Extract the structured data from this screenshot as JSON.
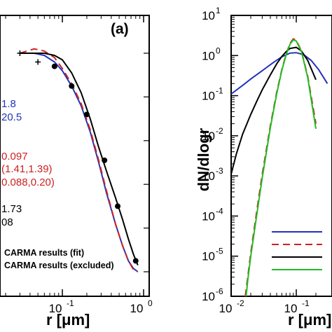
{
  "chart_data": [
    {
      "type": "line",
      "panel_label": "(a)",
      "xlabel": "r  [μm]",
      "xscale": "log",
      "x_ticks": [
        {
          "value": 0.1,
          "label": "10",
          "exp": "-1"
        },
        {
          "value": 1,
          "label": "10",
          "exp": "0"
        }
      ],
      "xlim": [
        0.01,
        1.0
      ],
      "ylim": [
        0,
        1.1
      ],
      "annotations": [
        {
          "text": "1.8",
          "color": "#2233bb"
        },
        {
          "text": "20.5",
          "color": "#2233bb"
        },
        {
          "text": "0.097",
          "color": "#cc2222"
        },
        {
          "text": "(1.41,1.39)",
          "color": "#cc2222"
        },
        {
          "text": "0.088,0.20)",
          "color": "#cc2222"
        },
        {
          "text": "1.73",
          "color": "#000000"
        },
        {
          "text": "08",
          "color": "#000000"
        }
      ],
      "legend": [
        {
          "marker": "filled-circle",
          "text": "CARMA results (fit)"
        },
        {
          "marker": "plus",
          "text": "CARMA results (excluded)"
        }
      ],
      "series": [
        {
          "style": "solid",
          "color": "#2233bb",
          "x": [
            0.03,
            0.045,
            0.06,
            0.08,
            0.1,
            0.13,
            0.17,
            0.22,
            0.28,
            0.35,
            0.45,
            0.55,
            0.65,
            0.75,
            0.85
          ],
          "y": [
            1.0,
            1.0,
            0.99,
            0.96,
            0.92,
            0.85,
            0.76,
            0.64,
            0.5,
            0.36,
            0.22,
            0.12,
            0.05,
            0.015,
            0.0
          ]
        },
        {
          "style": "dashed",
          "color": "#cc2222",
          "x": [
            0.03,
            0.045,
            0.06,
            0.08,
            0.1,
            0.13,
            0.17,
            0.22,
            0.28,
            0.35,
            0.45,
            0.55,
            0.65,
            0.75,
            0.85
          ],
          "y": [
            1.0,
            1.02,
            1.01,
            0.98,
            0.93,
            0.86,
            0.77,
            0.65,
            0.51,
            0.37,
            0.22,
            0.12,
            0.05,
            0.01,
            0.0
          ]
        },
        {
          "style": "solid",
          "color": "#000000",
          "x": [
            0.03,
            0.045,
            0.06,
            0.08,
            0.1,
            0.13,
            0.17,
            0.22,
            0.28,
            0.35,
            0.45,
            0.55,
            0.65,
            0.75,
            0.85
          ],
          "y": [
            1.0,
            1.0,
            1.0,
            0.99,
            0.97,
            0.91,
            0.82,
            0.7,
            0.57,
            0.46,
            0.34,
            0.24,
            0.15,
            0.08,
            0.03
          ]
        }
      ],
      "points_fit": {
        "x": [
          0.08,
          0.13,
          0.2,
          0.33,
          0.48,
          0.8
        ],
        "y": [
          0.94,
          0.85,
          0.72,
          0.51,
          0.3,
          0.05
        ]
      },
      "points_excluded": {
        "x": [
          0.03,
          0.05
        ],
        "y": [
          1.0,
          0.96
        ]
      }
    },
    {
      "type": "line",
      "ylabel": "dN/dlogr",
      "xlabel": "r  [μm]",
      "xscale": "log",
      "yscale": "log",
      "xlim": [
        0.01,
        0.3
      ],
      "ylim": [
        1e-06,
        10
      ],
      "x_ticks": [
        {
          "value": 0.01,
          "label": "10",
          "exp": "-2"
        },
        {
          "value": 0.1,
          "label": "10",
          "exp": "-1"
        }
      ],
      "y_ticks": [
        {
          "value": 10,
          "label": "10",
          "exp": "1"
        },
        {
          "value": 1,
          "label": "10",
          "exp": "0"
        },
        {
          "value": 0.1,
          "label": "10",
          "exp": "-1"
        },
        {
          "value": 0.01,
          "label": "10",
          "exp": "-2"
        },
        {
          "value": 0.001,
          "label": "10",
          "exp": "-3"
        },
        {
          "value": 0.0001,
          "label": "10",
          "exp": "-4"
        },
        {
          "value": 1e-05,
          "label": "10",
          "exp": "-5"
        },
        {
          "value": 1e-06,
          "label": "10",
          "exp": "-6"
        }
      ],
      "legend_swatches": [
        {
          "style": "solid",
          "color": "#2233bb"
        },
        {
          "style": "dashed",
          "color": "#cc2222"
        },
        {
          "style": "solid",
          "color": "#000000"
        },
        {
          "style": "solid",
          "color": "#22bb22"
        }
      ],
      "series": [
        {
          "style": "solid",
          "color": "#2233bb",
          "x": [
            0.01,
            0.015,
            0.02,
            0.03,
            0.045,
            0.06,
            0.08,
            0.1,
            0.13,
            0.17,
            0.22,
            0.3
          ],
          "y": [
            0.11,
            0.18,
            0.26,
            0.42,
            0.68,
            0.93,
            1.15,
            1.18,
            1.05,
            0.75,
            0.45,
            0.2
          ]
        },
        {
          "style": "dashed",
          "color": "#cc2222",
          "x": [
            0.0165,
            0.018,
            0.02,
            0.025,
            0.03,
            0.04,
            0.05,
            0.06,
            0.07,
            0.08,
            0.09,
            0.1,
            0.12,
            0.15,
            0.2
          ],
          "y": [
            1e-06,
            3e-06,
            1.2e-05,
            0.00015,
            0.0011,
            0.018,
            0.12,
            0.45,
            1.1,
            2.0,
            2.6,
            2.4,
            1.3,
            0.3,
            0.02
          ]
        },
        {
          "style": "solid",
          "color": "#000000",
          "x": [
            0.01,
            0.012,
            0.015,
            0.02,
            0.025,
            0.03,
            0.04,
            0.05,
            0.06,
            0.07,
            0.08,
            0.1,
            0.12,
            0.15,
            0.2
          ],
          "y": [
            0.0011,
            0.0035,
            0.011,
            0.034,
            0.075,
            0.14,
            0.33,
            0.62,
            0.95,
            1.25,
            1.5,
            1.6,
            1.3,
            0.75,
            0.25
          ]
        },
        {
          "style": "solid",
          "color": "#22bb22",
          "x": [
            0.017,
            0.018,
            0.02,
            0.025,
            0.03,
            0.04,
            0.05,
            0.06,
            0.07,
            0.08,
            0.09,
            0.1,
            0.12,
            0.15,
            0.2
          ],
          "y": [
            1e-06,
            2.5e-06,
            1e-05,
            0.00012,
            0.0009,
            0.016,
            0.11,
            0.43,
            1.05,
            1.9,
            2.45,
            2.3,
            1.25,
            0.28,
            0.015
          ]
        }
      ]
    }
  ]
}
